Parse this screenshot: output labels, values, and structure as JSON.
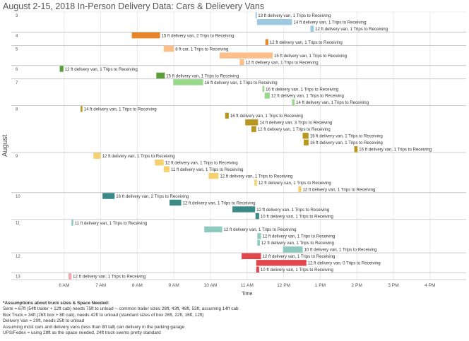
{
  "title": "August 2-15, 2018 In-Person Delivery Data: Cars & Delievery Vans",
  "chart_data": {
    "type": "gantt",
    "title": "August 2-15, 2018 In-Person Delivery Data: Cars & Delievery Vans",
    "xlabel": "Time",
    "ylabel": "August",
    "xticks": [
      "6 AM",
      "7 AM",
      "8 AM",
      "9 AM",
      "10 AM",
      "11 AM",
      "12 PM",
      "1 PM",
      "2 PM",
      "3 PM",
      "4 PM"
    ],
    "xlim_hours": [
      5.0,
      15.5
    ],
    "grid": true,
    "groups": [
      {
        "day": "3",
        "rows": [
          {
            "start": 11.23,
            "end": 11.26,
            "label": "13 ft delivery van, 1 Trips to Receiving",
            "color": "#9ecae1"
          },
          {
            "start": 11.27,
            "end": 12.23,
            "label": "14 ft delivery van, 1 Trips to Receiving",
            "color": "#9ecae1"
          },
          {
            "start": 12.73,
            "end": 12.82,
            "label": "12 ft delivery van, 1 Trips to Receiving",
            "color": "#9ecae1"
          }
        ]
      },
      {
        "day": "4",
        "rows": [
          {
            "start": 7.85,
            "end": 8.62,
            "label": "15 ft delivery van, 2 Trips to Receiving",
            "color": "#e6842a"
          },
          {
            "start": 11.5,
            "end": 11.58,
            "label": "12 ft delivery van, 1 Trips to Receiving",
            "color": "#e6842a"
          }
        ]
      },
      {
        "day": "5",
        "rows": [
          {
            "start": 8.72,
            "end": 9.0,
            "label": "8 ft car, 1 Trips to Receiving",
            "color": "#fdbf8a"
          },
          {
            "start": 10.25,
            "end": 11.7,
            "label": "15 ft delivery van, 1 Trips to Receiving",
            "color": "#fdbf8a"
          },
          {
            "start": 10.8,
            "end": 10.92,
            "label": "12 ft delivery van, 1 Trips to Receiving",
            "color": "#fdbf8a"
          }
        ]
      },
      {
        "day": "6",
        "rows": [
          {
            "start": 5.88,
            "end": 5.98,
            "label": "12 ft delivery van, 1 Trips to Receiving",
            "color": "#5a9e3a"
          },
          {
            "start": 8.52,
            "end": 8.75,
            "label": "15 ft delivery van, 1 Trips to Receiving",
            "color": "#5a9e3a"
          }
        ]
      },
      {
        "day": "7",
        "rows": [
          {
            "start": 8.98,
            "end": 9.8,
            "label": "16 ft delivery van, 1 Trips to Receiving",
            "color": "#98d88a"
          },
          {
            "start": 11.42,
            "end": 11.47,
            "label": "16 ft delivery van, 1 Trips to Receiving",
            "color": "#98d88a"
          },
          {
            "start": 11.48,
            "end": 11.62,
            "label": "12 ft delivery van, 1 Trips to Receiving",
            "color": "#98d88a"
          },
          {
            "start": 12.23,
            "end": 12.3,
            "label": "14 ft delivery van, 1 Trips to Receiving",
            "color": "#98d88a"
          }
        ]
      },
      {
        "day": "8",
        "rows": [
          {
            "start": 6.45,
            "end": 6.5,
            "label": "14 ft delivery van, 1 Trips to Receiving",
            "color": "#b8961f"
          },
          {
            "start": 10.4,
            "end": 10.5,
            "label": "16 ft delivery van, 1 Trips to Receiving",
            "color": "#b8961f"
          },
          {
            "start": 10.95,
            "end": 11.3,
            "label": "14 ft delivery van, 3 Trips to Receiving",
            "color": "#b8961f"
          },
          {
            "start": 11.12,
            "end": 11.25,
            "label": "12 ft delivery van, 1 Trips to Receiving",
            "color": "#b8961f"
          },
          {
            "start": 12.52,
            "end": 12.68,
            "label": "16 ft delivery van, 1 Trips to Receiving",
            "color": "#b8961f"
          },
          {
            "start": 12.55,
            "end": 12.68,
            "label": "16 ft delivery van, 1 Trips to Receiving",
            "color": "#b8961f"
          },
          {
            "start": 13.93,
            "end": 14.02,
            "label": "16 ft delivery van, 1 Trips to Receiving",
            "color": "#b8961f"
          }
        ]
      },
      {
        "day": "9",
        "rows": [
          {
            "start": 6.8,
            "end": 7.0,
            "label": "12 ft delivery van, 1 Trips to Receiving",
            "color": "#f5d16f"
          },
          {
            "start": 8.48,
            "end": 8.72,
            "label": "12 ft delivery van, 1 Trips to Receiving",
            "color": "#f5d16f"
          },
          {
            "start": 8.72,
            "end": 8.88,
            "label": "11 ft delivery van, 1 Trips to Receiving",
            "color": "#f5d16f"
          },
          {
            "start": 9.95,
            "end": 10.22,
            "label": "12 ft delivery van, 1 Trips to Receiving",
            "color": "#f5d16f"
          },
          {
            "start": 11.2,
            "end": 11.27,
            "label": "12 ft delivery van, 1 Trips to Receiving",
            "color": "#f5d16f"
          },
          {
            "start": 12.4,
            "end": 12.48,
            "label": "12 ft delivery van, 1 Trips to Receiving",
            "color": "#f5d16f"
          }
        ]
      },
      {
        "day": "10",
        "rows": [
          {
            "start": 7.05,
            "end": 7.38,
            "label": "16 ft delivery van, 2 Trips to Receiving",
            "color": "#3a8a88"
          },
          {
            "start": 8.88,
            "end": 9.2,
            "label": "12 ft delivery van, 1 Trips to Receiving",
            "color": "#3a8a88"
          },
          {
            "start": 10.6,
            "end": 11.22,
            "label": "12 ft delivery van, 1 Trips to Receiving",
            "color": "#3a8a88"
          },
          {
            "start": 11.23,
            "end": 11.33,
            "label": "10 ft delivery van, 1 Trips to Receiving",
            "color": "#3a8a88"
          }
        ]
      },
      {
        "day": "11",
        "rows": [
          {
            "start": 6.2,
            "end": 6.25,
            "label": "11 ft delivery van, 1 Trips to Receiving",
            "color": "#8ecbbf"
          },
          {
            "start": 9.83,
            "end": 10.32,
            "label": "12 ft delivery van, 1 Trips to Receiving",
            "color": "#8ecbbf"
          },
          {
            "start": 11.28,
            "end": 11.38,
            "label": "12 ft delivery van, 1 Trips to Receiving",
            "color": "#8ecbbf"
          },
          {
            "start": 11.28,
            "end": 11.35,
            "label": "12 ft delivery van, 1 Trips to Receiving",
            "color": "#8ecbbf"
          },
          {
            "start": 11.98,
            "end": 12.52,
            "label": "10 ft delivery van, 1 Trips to Receiving",
            "color": "#8ecbbf"
          }
        ]
      },
      {
        "day": "12",
        "rows": [
          {
            "start": 10.85,
            "end": 11.38,
            "label": "12 ft delivery van, 1 Trips to Receiving",
            "color": "#e0474c"
          },
          {
            "start": 11.25,
            "end": 12.62,
            "label": "12 ft delivery van, 0 Trips to Receiving",
            "color": "#e0474c"
          },
          {
            "start": 11.25,
            "end": 11.33,
            "label": "10 ft delivery van, 1 Trips to Receiving",
            "color": "#e0474c"
          }
        ]
      },
      {
        "day": "13",
        "rows": [
          {
            "start": 6.12,
            "end": 6.2,
            "label": "12 ft delivery van, 1 Trips to Receiving",
            "color": "#f4a6a6"
          }
        ]
      }
    ]
  },
  "notes": {
    "heading": "*Assumptions about truck sizes & Space Needed:",
    "lines": [
      "Semi = 67ft (54ft trailer + 12ft cab) needs 75ft to unload -- common trailer sizes 28ft, 43ft, 48ft, 53ft, assuming 14ft cab",
      "Box Truck = 34ft (26ft box + 8ft cab), needs 42ft to unload (standard sizes of box 26ft, 22ft, 16ft, 12ft)",
      "Delivery Van = 20ft, needs 25ft to unload",
      "Assuming most cars and delivery vans (less than 8ft tall) can delivery in the parking garage",
      "UPS/Fedex = using 28ft as the space needed, 24ft truck seems pretty standard"
    ]
  }
}
